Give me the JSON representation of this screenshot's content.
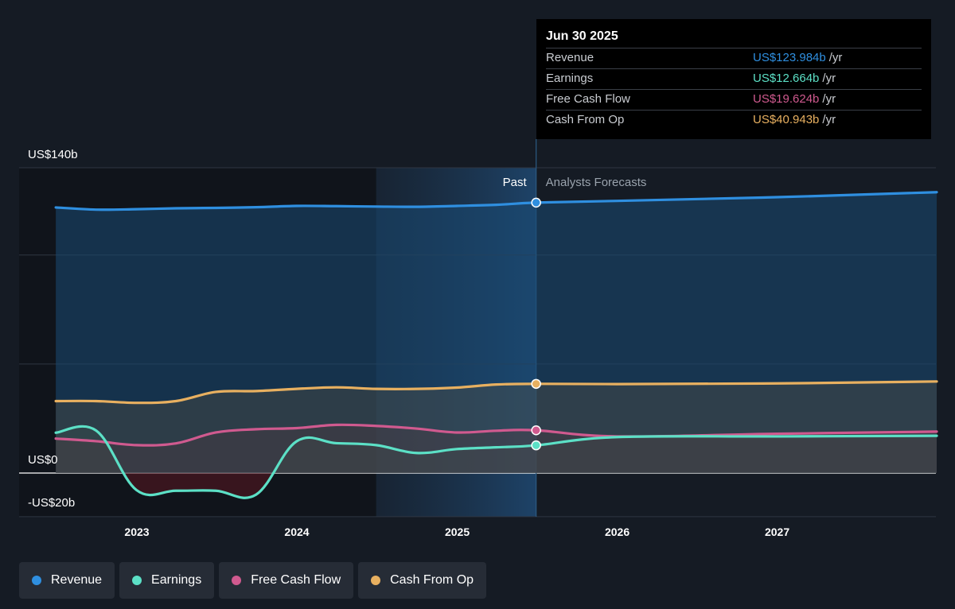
{
  "chart_data": {
    "type": "line",
    "x_ticks": [
      "2023",
      "2024",
      "2025",
      "2026",
      "2027"
    ],
    "y_ticks": [
      "US$140b",
      "US$0",
      "-US$20b"
    ],
    "ylim": [
      -20,
      140
    ],
    "period_labels": {
      "past": "Past",
      "forecast": "Analysts Forecasts"
    },
    "divider_date": "2025-06-30",
    "series": [
      {
        "name": "Revenue",
        "color": "#2f8fe0",
        "points": [
          [
            "2022-06-30",
            121.8
          ],
          [
            "2022-09-30",
            120.8
          ],
          [
            "2022-12-31",
            121.0
          ],
          [
            "2023-03-31",
            121.4
          ],
          [
            "2023-06-30",
            121.6
          ],
          [
            "2023-09-30",
            121.9
          ],
          [
            "2023-12-31",
            122.5
          ],
          [
            "2024-03-31",
            122.4
          ],
          [
            "2024-06-30",
            122.2
          ],
          [
            "2024-09-30",
            122.1
          ],
          [
            "2024-12-31",
            122.5
          ],
          [
            "2025-03-31",
            123.0
          ],
          [
            "2025-06-30",
            124.0
          ],
          [
            "2025-12-31",
            124.8
          ],
          [
            "2026-12-31",
            126.5
          ],
          [
            "2027-12-31",
            128.8
          ]
        ]
      },
      {
        "name": "Earnings",
        "color": "#5ce0c6",
        "points": [
          [
            "2022-06-30",
            18.5
          ],
          [
            "2022-09-30",
            19.5
          ],
          [
            "2022-12-31",
            -7.8
          ],
          [
            "2023-03-31",
            -8.1
          ],
          [
            "2023-06-30",
            -8.1
          ],
          [
            "2023-09-30",
            -9.9
          ],
          [
            "2023-12-31",
            14.5
          ],
          [
            "2024-03-31",
            13.7
          ],
          [
            "2024-06-30",
            12.8
          ],
          [
            "2024-09-30",
            9.2
          ],
          [
            "2024-12-31",
            11.0
          ],
          [
            "2025-03-31",
            11.8
          ],
          [
            "2025-06-30",
            12.7
          ],
          [
            "2025-12-31",
            16.5
          ],
          [
            "2026-12-31",
            16.8
          ],
          [
            "2027-12-31",
            17.1
          ]
        ]
      },
      {
        "name": "Free Cash Flow",
        "color": "#d05a8f",
        "points": [
          [
            "2022-06-30",
            15.8
          ],
          [
            "2022-09-30",
            14.6
          ],
          [
            "2022-12-31",
            12.8
          ],
          [
            "2023-03-31",
            13.6
          ],
          [
            "2023-06-30",
            18.6
          ],
          [
            "2023-09-30",
            20.1
          ],
          [
            "2023-12-31",
            20.6
          ],
          [
            "2024-03-31",
            22.1
          ],
          [
            "2024-06-30",
            21.6
          ],
          [
            "2024-09-30",
            20.4
          ],
          [
            "2024-12-31",
            18.6
          ],
          [
            "2025-03-31",
            19.4
          ],
          [
            "2025-06-30",
            19.6
          ],
          [
            "2025-12-31",
            16.8
          ],
          [
            "2026-12-31",
            18.0
          ],
          [
            "2027-12-31",
            19.0
          ]
        ]
      },
      {
        "name": "Cash From Op",
        "color": "#e8b060",
        "points": [
          [
            "2022-06-30",
            33.0
          ],
          [
            "2022-09-30",
            33.0
          ],
          [
            "2022-12-31",
            32.2
          ],
          [
            "2023-03-31",
            33.0
          ],
          [
            "2023-06-30",
            37.2
          ],
          [
            "2023-09-30",
            37.6
          ],
          [
            "2023-12-31",
            38.6
          ],
          [
            "2024-03-31",
            39.3
          ],
          [
            "2024-06-30",
            38.6
          ],
          [
            "2024-09-30",
            38.6
          ],
          [
            "2024-12-31",
            39.2
          ],
          [
            "2025-03-31",
            40.6
          ],
          [
            "2025-06-30",
            40.9
          ],
          [
            "2025-12-31",
            40.8
          ],
          [
            "2026-12-31",
            41.1
          ],
          [
            "2027-12-31",
            42.0
          ]
        ]
      }
    ]
  },
  "tooltip": {
    "date": "Jun 30 2025",
    "rows": [
      {
        "label": "Revenue",
        "value": "US$123.984b",
        "unit": "/yr",
        "color": "#2f8fe0"
      },
      {
        "label": "Earnings",
        "value": "US$12.664b",
        "unit": "/yr",
        "color": "#5ce0c6"
      },
      {
        "label": "Free Cash Flow",
        "value": "US$19.624b",
        "unit": "/yr",
        "color": "#d05a8f"
      },
      {
        "label": "Cash From Op",
        "value": "US$40.943b",
        "unit": "/yr",
        "color": "#e8b060"
      }
    ]
  },
  "legend": [
    {
      "label": "Revenue",
      "color": "#2f8fe0"
    },
    {
      "label": "Earnings",
      "color": "#5ce0c6"
    },
    {
      "label": "Free Cash Flow",
      "color": "#d05a8f"
    },
    {
      "label": "Cash From Op",
      "color": "#e8b060"
    }
  ]
}
